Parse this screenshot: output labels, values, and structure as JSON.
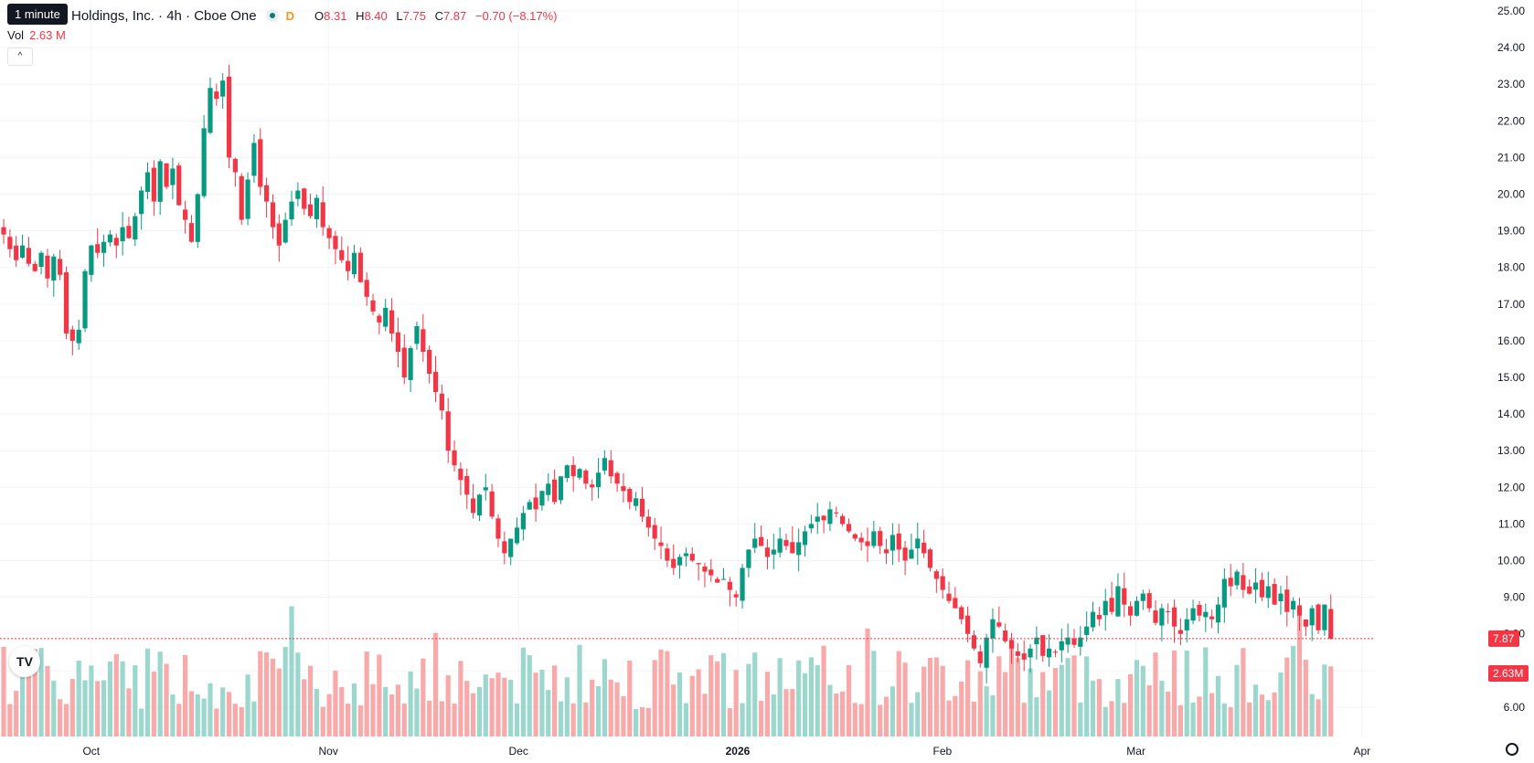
{
  "header": {
    "tooltip": "1 minute",
    "symbol": "Holdings, Inc. · 4h · Cboe One",
    "badge": "D",
    "o_label": "O",
    "o_val": "8.31",
    "h_label": "H",
    "h_val": "8.40",
    "l_label": "L",
    "l_val": "7.75",
    "c_label": "C",
    "c_val": "7.87",
    "change": "−0.70 (−8.17%)",
    "vol_label": "Vol",
    "vol_val": "2.63 M",
    "collapse_glyph": "^"
  },
  "colors": {
    "up": "#089981",
    "down": "#f23645",
    "up_vol": "#9bd7cd",
    "down_vol": "#f7aaa9",
    "grid": "#f0f3fa"
  },
  "chart_data": {
    "type": "candlestick",
    "y_axis": {
      "ylim": [
        5.2,
        25.3
      ],
      "ticks": [
        "6.00",
        "7.00",
        "8.00",
        "9.00",
        "10.00",
        "11.00",
        "12.00",
        "13.00",
        "14.00",
        "15.00",
        "16.00",
        "17.00",
        "18.00",
        "19.00",
        "20.00",
        "21.00",
        "22.00",
        "23.00",
        "24.00",
        "25.00"
      ]
    },
    "x_axis": {
      "ticks": [
        "Oct",
        "Nov",
        "Dec",
        "2026",
        "Feb",
        "Mar",
        "Apr"
      ]
    },
    "last_price": "7.87",
    "last_volume": "2.63M",
    "close_series": [
      18.9,
      18.5,
      18.2,
      18.6,
      18.1,
      17.9,
      18.4,
      17.7,
      18.3,
      17.8,
      16.2,
      16.0,
      16.3,
      17.9,
      18.6,
      18.4,
      18.7,
      18.9,
      18.6,
      19.1,
      18.8,
      19.4,
      20.1,
      20.6,
      19.8,
      20.9,
      20.2,
      20.7,
      19.7,
      19.3,
      18.7,
      20.0,
      21.8,
      22.9,
      22.6,
      23.1,
      21.0,
      20.6,
      19.3,
      20.4,
      21.4,
      20.2,
      19.8,
      19.1,
      18.6,
      19.3,
      19.8,
      20.1,
      19.6,
      19.4,
      19.9,
      19.1,
      18.8,
      18.5,
      18.2,
      17.9,
      18.4,
      17.6,
      17.2,
      16.8,
      16.5,
      16.9,
      16.2,
      15.7,
      15.0,
      15.8,
      16.4,
      15.7,
      15.1,
      14.6,
      14.1,
      13.0,
      12.6,
      12.2,
      11.8,
      11.3,
      11.8,
      12.0,
      11.2,
      10.6,
      10.2,
      10.6,
      10.9,
      11.3,
      11.6,
      11.4,
      11.9,
      12.1,
      11.6,
      12.3,
      12.6,
      12.3,
      12.5,
      12.1,
      12.0,
      12.4,
      12.8,
      12.3,
      12.1,
      11.9,
      11.6,
      11.7,
      11.2,
      10.9,
      10.6,
      10.4,
      10.0,
      9.8,
      10.1,
      10.2,
      10.0,
      9.9,
      9.7,
      9.6,
      9.4,
      9.5,
      9.2,
      9.0,
      9.8,
      10.3,
      10.6,
      10.4,
      10.1,
      10.3,
      10.6,
      10.4,
      10.2,
      10.5,
      10.8,
      11.0,
      11.2,
      11.1,
      11.4,
      11.3,
      11.0,
      10.8,
      10.6,
      10.5,
      10.4,
      10.8,
      10.4,
      10.2,
      10.7,
      10.3,
      10.0,
      10.3,
      10.6,
      10.2,
      9.8,
      9.5,
      9.2,
      8.9,
      8.7,
      8.4,
      8.0,
      7.6,
      7.2,
      7.9,
      8.4,
      8.2,
      7.8,
      7.6,
      7.4,
      7.3,
      7.6,
      7.9,
      7.4,
      7.6,
      7.5,
      7.8,
      7.9,
      7.7,
      7.9,
      8.2,
      8.6,
      8.4,
      8.9,
      8.6,
      9.3,
      8.8,
      8.5,
      8.9,
      9.1,
      8.7,
      8.3,
      8.7,
      8.6,
      8.2,
      8.0,
      8.4,
      8.7,
      8.5,
      8.6,
      8.4,
      8.8,
      9.5,
      9.3,
      9.7,
      9.2,
      9.1,
      9.4,
      9.0,
      9.3,
      8.8,
      9.1,
      8.6,
      8.9,
      8.5,
      8.2,
      8.7,
      8.1,
      8.8,
      7.87
    ]
  }
}
